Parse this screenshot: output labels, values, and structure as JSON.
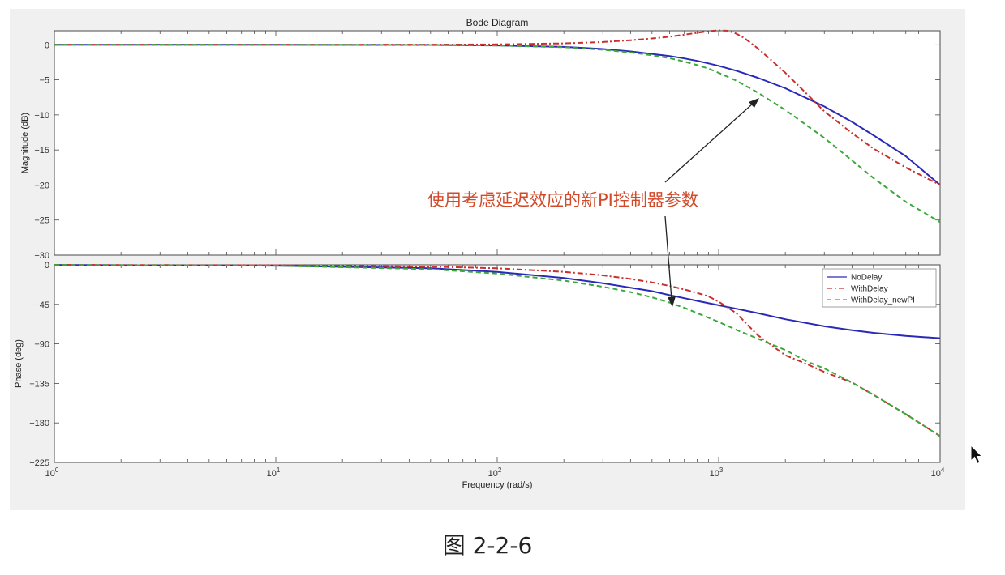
{
  "chart_data": {
    "type": "line",
    "title": "Bode Diagram",
    "xlabel": "Frequency  (rad/s)",
    "xscale": "log",
    "xlim": [
      1,
      10000
    ],
    "x_ticks": [
      {
        "value": 1,
        "base": "10",
        "exp": "0"
      },
      {
        "value": 10,
        "base": "10",
        "exp": "1"
      },
      {
        "value": 100,
        "base": "10",
        "exp": "2"
      },
      {
        "value": 1000,
        "base": "10",
        "exp": "3"
      },
      {
        "value": 10000,
        "base": "10",
        "exp": "4"
      }
    ],
    "magnitude": {
      "ylabel": "Magnitude (dB)",
      "ylim": [
        -30,
        2
      ],
      "yticks": [
        0,
        -5,
        -10,
        -15,
        -20,
        -25,
        -30
      ],
      "series": [
        {
          "name": "NoDelay",
          "color": "#2a2ab8",
          "dash": "solid",
          "x": [
            1,
            10,
            50,
            100,
            200,
            300,
            400,
            500,
            600,
            700,
            800,
            900,
            1000,
            1200,
            1500,
            2000,
            3000,
            4000,
            5000,
            7000,
            10000
          ],
          "y": [
            0,
            0,
            -0.02,
            -0.09,
            -0.3,
            -0.6,
            -0.95,
            -1.3,
            -1.6,
            -1.95,
            -2.3,
            -2.65,
            -3.0,
            -3.7,
            -4.7,
            -6.2,
            -8.8,
            -11.0,
            -12.9,
            -15.9,
            -20.0
          ]
        },
        {
          "name": "WithDelay",
          "color": "#c8302e",
          "dash": "dashdot",
          "x": [
            1,
            10,
            50,
            100,
            200,
            300,
            400,
            500,
            600,
            700,
            800,
            900,
            1000,
            1100,
            1200,
            1300,
            1500,
            1700,
            2000,
            2500,
            3000,
            4000,
            5000,
            7000,
            10000
          ],
          "y": [
            0,
            0,
            0.02,
            0.06,
            0.2,
            0.4,
            0.65,
            0.9,
            1.15,
            1.45,
            1.7,
            1.95,
            2.05,
            2.0,
            1.6,
            1.0,
            -0.5,
            -2.0,
            -4.0,
            -7.0,
            -9.5,
            -12.6,
            -14.8,
            -17.5,
            -20.0
          ]
        },
        {
          "name": "WithDelay_newPI",
          "color": "#3aa83a",
          "dash": "dashed",
          "x": [
            1,
            10,
            50,
            100,
            200,
            300,
            400,
            500,
            600,
            700,
            800,
            900,
            1000,
            1200,
            1500,
            2000,
            3000,
            4000,
            5000,
            7000,
            10000
          ],
          "y": [
            0,
            0,
            -0.02,
            -0.1,
            -0.35,
            -0.7,
            -1.1,
            -1.5,
            -1.9,
            -2.4,
            -2.9,
            -3.4,
            -4.0,
            -5.1,
            -6.8,
            -9.3,
            -13.3,
            -16.5,
            -19.0,
            -22.4,
            -25.3
          ]
        }
      ]
    },
    "phase": {
      "ylabel": "Phase (deg)",
      "ylim": [
        -225,
        0
      ],
      "yticks": [
        0,
        -45,
        -90,
        -135,
        -180,
        -225
      ],
      "series": [
        {
          "name": "NoDelay",
          "color": "#2a2ab8",
          "dash": "solid",
          "x": [
            1,
            10,
            50,
            100,
            200,
            300,
            400,
            500,
            600,
            700,
            800,
            1000,
            1200,
            1500,
            2000,
            3000,
            4000,
            5000,
            7000,
            10000
          ],
          "y": [
            -0.1,
            -1.0,
            -4.0,
            -8.0,
            -15.0,
            -21.0,
            -26.0,
            -30.0,
            -34.5,
            -38.0,
            -41.0,
            -46.0,
            -50.0,
            -55.0,
            -62.0,
            -70.0,
            -74.5,
            -77.5,
            -81.0,
            -83.5
          ]
        },
        {
          "name": "WithDelay",
          "color": "#c8302e",
          "dash": "dashdot",
          "x": [
            1,
            10,
            50,
            100,
            200,
            300,
            400,
            500,
            600,
            700,
            800,
            900,
            1000,
            1200,
            1500,
            2000,
            2500,
            3000,
            4000,
            5000,
            7000,
            10000
          ],
          "y": [
            -0.1,
            -0.5,
            -2.0,
            -4.0,
            -8.0,
            -12.0,
            -16.0,
            -20.0,
            -24.0,
            -28.0,
            -32.0,
            -36.0,
            -42.0,
            -55.0,
            -80.0,
            -103.0,
            -113.0,
            -122.0,
            -134.0,
            -148.0,
            -170.0,
            -195.0
          ]
        },
        {
          "name": "WithDelay_newPI",
          "color": "#3aa83a",
          "dash": "dashed",
          "x": [
            1,
            10,
            50,
            100,
            200,
            300,
            400,
            500,
            600,
            700,
            800,
            1000,
            1200,
            1500,
            2000,
            2500,
            3000,
            4000,
            5000,
            7000,
            10000
          ],
          "y": [
            -0.1,
            -1.0,
            -5.0,
            -10.0,
            -18.0,
            -25.0,
            -31.0,
            -37.0,
            -43.0,
            -49.0,
            -55.0,
            -65.0,
            -74.0,
            -84.0,
            -97.0,
            -110.0,
            -118.0,
            -134.0,
            -148.0,
            -170.0,
            -195.0
          ]
        }
      ]
    },
    "legend": {
      "position": "top-right",
      "entries": [
        "NoDelay",
        "WithDelay",
        "WithDelay_newPI"
      ]
    },
    "annotation": {
      "text": "使用考虑延迟效应的新PI控制器参数",
      "color": "#d24a2a"
    },
    "grid": false
  },
  "caption": "图 2-2-6",
  "icons": {
    "cursor": "mouse-pointer-icon"
  }
}
